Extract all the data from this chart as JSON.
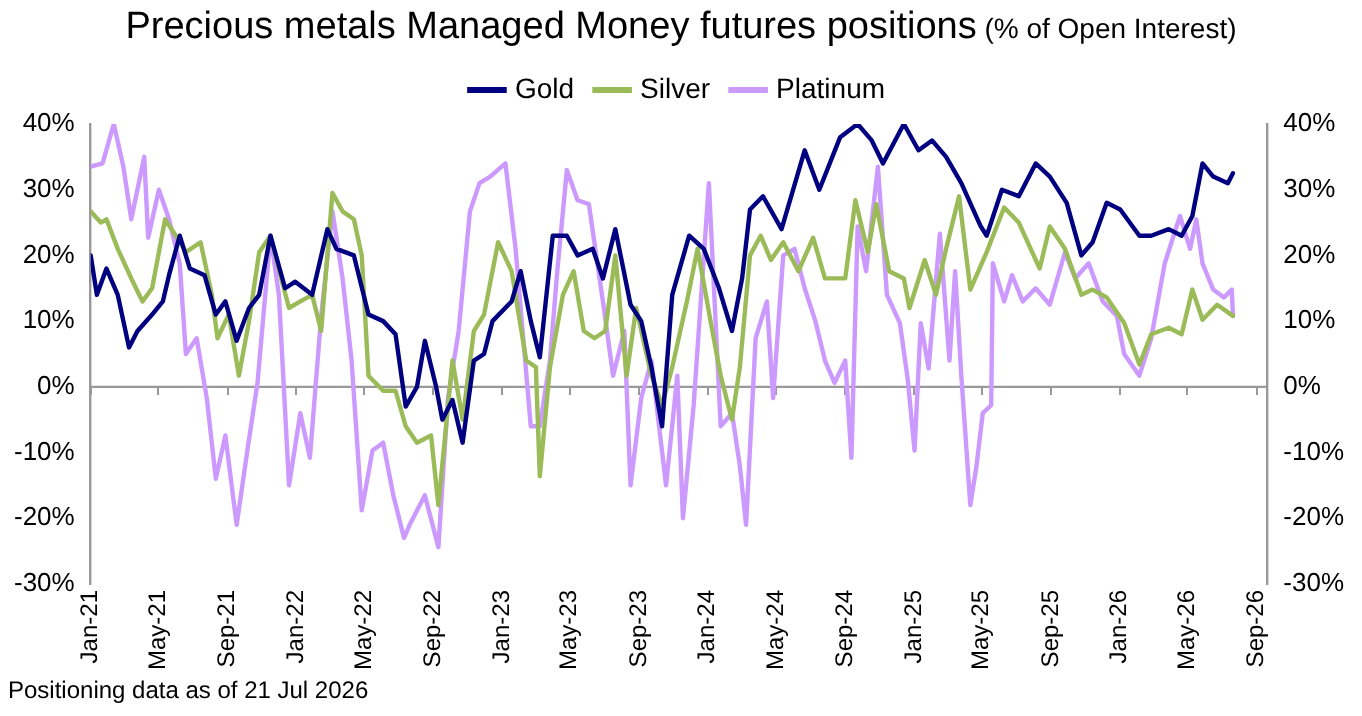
{
  "chart_data": {
    "type": "line",
    "title": "Precious metals Managed Money futures positions",
    "subtitle": "(% of Open Interest)",
    "annotations": [
      "Positioning data as of 21 Jul 2026"
    ],
    "legend": "top",
    "grid": false,
    "marker": "none",
    "line_style": "solid",
    "xlim": [
      "2021-01-01",
      "2026-09-20"
    ],
    "xticks": [
      {
        "value": "2021-01-01",
        "label": "Jan-21"
      },
      {
        "value": "2021-05-01",
        "label": "May-21"
      },
      {
        "value": "2021-09-01",
        "label": "Sep-21"
      },
      {
        "value": "2022-01-01",
        "label": "Jan-22"
      },
      {
        "value": "2022-05-01",
        "label": "May-22"
      },
      {
        "value": "2022-09-01",
        "label": "Sep-22"
      },
      {
        "value": "2023-01-01",
        "label": "Jan-23"
      },
      {
        "value": "2023-05-01",
        "label": "May-23"
      },
      {
        "value": "2023-09-01",
        "label": "Sep-23"
      },
      {
        "value": "2024-01-01",
        "label": "Jan-24"
      },
      {
        "value": "2024-05-01",
        "label": "May-24"
      },
      {
        "value": "2024-09-01",
        "label": "Sep-24"
      },
      {
        "value": "2025-01-01",
        "label": "Jan-25"
      },
      {
        "value": "2025-05-01",
        "label": "May-25"
      },
      {
        "value": "2025-09-01",
        "label": "Sep-25"
      },
      {
        "value": "2026-01-01",
        "label": "Jan-26"
      },
      {
        "value": "2026-05-01",
        "label": "May-26"
      },
      {
        "value": "2026-09-01",
        "label": "Sep-26"
      }
    ],
    "ylim": [
      -30,
      40
    ],
    "yticks": [
      {
        "value": -30,
        "label": "-30%"
      },
      {
        "value": -20,
        "label": "-20%"
      },
      {
        "value": -10,
        "label": "-10%"
      },
      {
        "value": 0,
        "label": "0%"
      },
      {
        "value": 10,
        "label": "10%"
      },
      {
        "value": 20,
        "label": "20%"
      },
      {
        "value": 30,
        "label": "30%"
      },
      {
        "value": 40,
        "label": "40%"
      }
    ],
    "ref_lines": [
      {
        "axis": "y",
        "value": 0,
        "color": "#999999"
      }
    ],
    "y2lim": [
      -30,
      40
    ],
    "y2ticks": [
      {
        "value": -30,
        "label": "-30%"
      },
      {
        "value": -20,
        "label": "-20%"
      },
      {
        "value": -10,
        "label": "-10%"
      },
      {
        "value": 0,
        "label": "0%"
      },
      {
        "value": 10,
        "label": "10%"
      },
      {
        "value": 20,
        "label": "20%"
      },
      {
        "value": 30,
        "label": "30%"
      },
      {
        "value": 40,
        "label": "40%"
      }
    ],
    "series": [
      {
        "name": "Gold",
        "color": "#000080",
        "x": [
          "2021-01-01",
          "2021-01-12",
          "2021-01-29",
          "2021-02-18",
          "2021-03-10",
          "2021-03-25",
          "2021-04-20",
          "2021-05-09",
          "2021-05-20",
          "2021-06-08",
          "2021-06-26",
          "2021-07-22",
          "2021-08-11",
          "2021-08-28",
          "2021-09-17",
          "2021-10-09",
          "2021-10-27",
          "2021-11-16",
          "2021-12-12",
          "2021-12-30",
          "2022-01-29",
          "2022-02-25",
          "2022-03-13",
          "2022-04-13",
          "2022-05-09",
          "2022-06-04",
          "2022-06-26",
          "2022-07-14",
          "2022-08-03",
          "2022-08-17",
          "2022-09-06",
          "2022-09-17",
          "2022-10-05",
          "2022-10-23",
          "2022-11-12",
          "2022-11-30",
          "2022-12-15",
          "2023-01-18",
          "2023-02-03",
          "2023-02-21",
          "2023-03-09",
          "2023-04-01",
          "2023-04-26",
          "2023-05-15",
          "2023-06-11",
          "2023-06-29",
          "2023-07-21",
          "2023-08-17",
          "2023-09-05",
          "2023-09-23",
          "2023-10-12",
          "2023-10-30",
          "2023-11-29",
          "2023-12-25",
          "2024-01-21",
          "2024-02-13",
          "2024-03-02",
          "2024-03-16",
          "2024-04-08",
          "2024-05-11",
          "2024-06-21",
          "2024-07-17",
          "2024-08-23",
          "2024-09-23",
          "2024-10-18",
          "2024-11-07",
          "2024-12-14",
          "2025-01-09",
          "2025-02-02",
          "2025-02-27",
          "2025-03-26",
          "2025-04-29",
          "2025-05-10",
          "2025-06-06",
          "2025-07-06",
          "2025-08-05",
          "2025-08-30",
          "2025-09-29",
          "2025-10-25",
          "2025-11-14",
          "2025-12-09",
          "2026-01-02",
          "2026-02-05",
          "2026-02-26",
          "2026-03-29",
          "2026-04-21",
          "2026-05-10",
          "2026-05-28",
          "2026-06-16",
          "2026-07-12",
          "2026-07-21"
        ],
        "values": [
          20,
          14,
          18,
          14,
          6,
          8.5,
          11,
          13,
          17,
          23,
          18,
          17,
          11,
          13,
          7,
          12,
          14,
          23,
          15,
          16,
          14,
          24,
          21,
          20,
          11,
          10,
          8,
          -3,
          0,
          7,
          0,
          -5,
          -2,
          -8.5,
          4,
          5,
          10,
          13,
          17.6,
          10,
          4.5,
          23,
          23,
          20,
          21,
          16.5,
          24,
          12.5,
          10,
          3,
          -6,
          14,
          23,
          21,
          15,
          8.5,
          16.5,
          27,
          29,
          24,
          36,
          30,
          38,
          40,
          37.5,
          34,
          40,
          36,
          37.5,
          35,
          31,
          24.5,
          23,
          30,
          29,
          34,
          32,
          28,
          20,
          22,
          28,
          27,
          23,
          23,
          24,
          23,
          26,
          34,
          32,
          31,
          32.5
        ]
      },
      {
        "name": "Silver",
        "color": "#9bbb59",
        "x": [
          "2021-01-01",
          "2021-01-19",
          "2021-01-29",
          "2021-02-18",
          "2021-03-14",
          "2021-04-03",
          "2021-04-20",
          "2021-05-13",
          "2021-06-01",
          "2021-06-19",
          "2021-07-15",
          "2021-08-04",
          "2021-08-14",
          "2021-09-03",
          "2021-09-21",
          "2021-10-09",
          "2021-10-27",
          "2021-11-16",
          "2021-12-05",
          "2021-12-19",
          "2022-01-08",
          "2022-01-29",
          "2022-02-14",
          "2022-03-06",
          "2022-03-24",
          "2022-04-13",
          "2022-04-27",
          "2022-05-09",
          "2022-06-04",
          "2022-06-26",
          "2022-07-14",
          "2022-08-03",
          "2022-08-28",
          "2022-09-10",
          "2022-10-05",
          "2022-10-23",
          "2022-11-12",
          "2022-11-30",
          "2022-12-25",
          "2023-01-18",
          "2023-02-13",
          "2023-03-02",
          "2023-03-09",
          "2023-03-27",
          "2023-04-19",
          "2023-05-08",
          "2023-05-26",
          "2023-06-14",
          "2023-07-03",
          "2023-07-21",
          "2023-08-10",
          "2023-08-27",
          "2023-09-23",
          "2023-10-12",
          "2023-10-30",
          "2023-11-25",
          "2023-12-14",
          "2024-01-06",
          "2024-01-24",
          "2024-02-13",
          "2024-02-27",
          "2024-03-16",
          "2024-04-04",
          "2024-04-22",
          "2024-05-14",
          "2024-06-10",
          "2024-07-06",
          "2024-07-27",
          "2024-09-01",
          "2024-09-19",
          "2024-10-11",
          "2024-10-26",
          "2024-11-18",
          "2024-12-14",
          "2024-12-24",
          "2025-01-20",
          "2025-02-09",
          "2025-02-27",
          "2025-03-22",
          "2025-04-11",
          "2025-05-10",
          "2025-06-10",
          "2025-07-06",
          "2025-08-12",
          "2025-08-30",
          "2025-09-26",
          "2025-10-25",
          "2025-11-14",
          "2025-12-09",
          "2026-01-09",
          "2026-02-05",
          "2026-02-26",
          "2026-03-29",
          "2026-04-21",
          "2026-05-10",
          "2026-05-28",
          "2026-06-23",
          "2026-07-21"
        ],
        "values": [
          26.7,
          25,
          25.5,
          21,
          16.5,
          13,
          15,
          25.5,
          23,
          20.5,
          22,
          14,
          7.4,
          11,
          1.7,
          10,
          20.5,
          23,
          16.5,
          12,
          13,
          14,
          8.5,
          29.5,
          26.7,
          25.5,
          20,
          1.7,
          -0.6,
          -0.6,
          -6,
          -8.5,
          -7.4,
          -18,
          4,
          -5,
          8.5,
          11,
          22,
          17.6,
          4,
          3,
          -13.6,
          3,
          14,
          17.6,
          8.5,
          7.4,
          8.5,
          20,
          1.7,
          12,
          1.7,
          -2.8,
          3,
          13,
          21,
          10,
          1.7,
          -5,
          3,
          20,
          23,
          19.3,
          22,
          17.6,
          22.7,
          16.5,
          16.5,
          28.4,
          20.5,
          27.8,
          17.6,
          16.5,
          12,
          19.3,
          14,
          21,
          29,
          14.8,
          20.5,
          27.3,
          25,
          18,
          24.4,
          21,
          14,
          14.8,
          13.6,
          9.7,
          3.4,
          8,
          9,
          8,
          14.8,
          10.2,
          12.5,
          10.8
        ]
      },
      {
        "name": "Platinum",
        "color": "#cc99ff",
        "x": [
          "2021-01-01",
          "2021-01-22",
          "2021-02-11",
          "2021-02-28",
          "2021-03-14",
          "2021-04-06",
          "2021-04-13",
          "2021-05-02",
          "2021-05-20",
          "2021-06-08",
          "2021-06-19",
          "2021-07-08",
          "2021-07-26",
          "2021-08-11",
          "2021-08-28",
          "2021-09-17",
          "2021-10-06",
          "2021-10-24",
          "2021-11-16",
          "2021-12-01",
          "2021-12-19",
          "2022-01-08",
          "2022-01-25",
          "2022-02-14",
          "2022-03-06",
          "2022-03-24",
          "2022-04-09",
          "2022-04-27",
          "2022-05-16",
          "2022-06-04",
          "2022-06-22",
          "2022-07-11",
          "2022-07-21",
          "2022-08-17",
          "2022-09-10",
          "2022-09-27",
          "2022-10-16",
          "2022-11-05",
          "2022-11-22",
          "2022-12-11",
          "2023-01-07",
          "2023-01-25",
          "2023-02-21",
          "2023-03-09",
          "2023-03-27",
          "2023-04-09",
          "2023-04-26",
          "2023-05-15",
          "2023-06-04",
          "2023-06-29",
          "2023-07-17",
          "2023-08-06",
          "2023-08-17",
          "2023-09-05",
          "2023-09-23",
          "2023-10-19",
          "2023-11-08",
          "2023-11-18",
          "2023-12-07",
          "2024-01-03",
          "2024-01-24",
          "2024-02-13",
          "2024-02-27",
          "2024-03-09",
          "2024-03-26",
          "2024-04-15",
          "2024-04-26",
          "2024-05-14",
          "2024-06-03",
          "2024-06-21",
          "2024-07-10",
          "2024-07-27",
          "2024-08-13",
          "2024-09-01",
          "2024-09-12",
          "2024-09-23",
          "2024-10-08",
          "2024-10-29",
          "2024-11-14",
          "2024-12-07",
          "2024-12-21",
          "2025-01-02",
          "2025-01-13",
          "2025-01-27",
          "2025-02-16",
          "2025-03-05",
          "2025-03-15",
          "2025-03-26",
          "2025-04-11",
          "2025-04-22",
          "2025-05-03",
          "2025-05-18",
          "2025-05-21",
          "2025-06-10",
          "2025-06-24",
          "2025-07-13",
          "2025-08-05",
          "2025-08-30",
          "2025-09-26",
          "2025-10-14",
          "2025-11-07",
          "2025-12-02",
          "2025-12-27",
          "2026-01-09",
          "2026-02-05",
          "2026-02-26",
          "2026-03-22",
          "2026-04-18",
          "2026-05-06",
          "2026-05-17",
          "2026-05-28",
          "2026-06-16",
          "2026-07-05",
          "2026-07-19",
          "2026-07-21"
        ],
        "values": [
          33.5,
          34,
          40,
          33.5,
          25.5,
          35,
          22.7,
          30,
          25.5,
          18.8,
          5,
          7.4,
          -1.7,
          -14,
          -7.4,
          -21,
          -9.7,
          0.6,
          23,
          14,
          -15,
          -4,
          -10.8,
          10.8,
          26.7,
          16.5,
          4,
          -18.8,
          -9.7,
          -8.5,
          -16.5,
          -23,
          -21,
          -16.5,
          -24.4,
          -1.7,
          8.5,
          26.7,
          31,
          32,
          34,
          21,
          -6,
          -6,
          4,
          17.6,
          33,
          28.4,
          27.8,
          13,
          1.7,
          8.5,
          -15,
          -1.7,
          4,
          -15,
          1.7,
          -20,
          -2.8,
          31,
          -6,
          -4,
          -12,
          -21,
          7.4,
          13,
          -1.7,
          20,
          21,
          15,
          10,
          4,
          0.6,
          4,
          -10.8,
          24.4,
          17.6,
          33.5,
          14,
          9.7,
          1.1,
          -9.7,
          9.7,
          2.8,
          23.3,
          4,
          17.6,
          1.7,
          -18,
          -12,
          -4,
          -2.8,
          18.8,
          13,
          17,
          13,
          15,
          12.5,
          20.5,
          16.5,
          18.8,
          13,
          10.8,
          5,
          1.7,
          7.4,
          18.8,
          26,
          21,
          25.5,
          18.8,
          14.8,
          13.6,
          14.8,
          10.8
        ]
      }
    ]
  }
}
